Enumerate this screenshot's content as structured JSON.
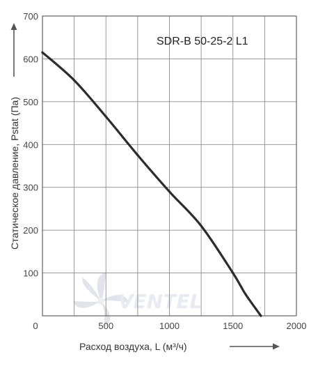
{
  "chart_data": {
    "type": "line",
    "title": "SDR-B 50-25-2 L1",
    "xlabel": "Расход воздуха, L (м³/ч)",
    "ylabel": "Статическое давление, Pstat (Па)",
    "xlim": [
      0,
      2000
    ],
    "ylim": [
      0,
      700
    ],
    "x_ticks": [
      "0",
      "500",
      "1000",
      "1500",
      "2000"
    ],
    "y_ticks": [
      "100",
      "200",
      "300",
      "400",
      "500",
      "600",
      "700"
    ],
    "grid": true,
    "series": [
      {
        "x": [
          0,
          250,
          500,
          750,
          1000,
          1250,
          1500,
          1600,
          1720
        ],
        "y": [
          615,
          550,
          465,
          375,
          290,
          210,
          100,
          50,
          0
        ]
      }
    ]
  },
  "watermark": "VENTEL",
  "colors": {
    "curve": "#2b2b2b",
    "grid": "#8a8a8a",
    "watermark": "#d6dce6"
  }
}
